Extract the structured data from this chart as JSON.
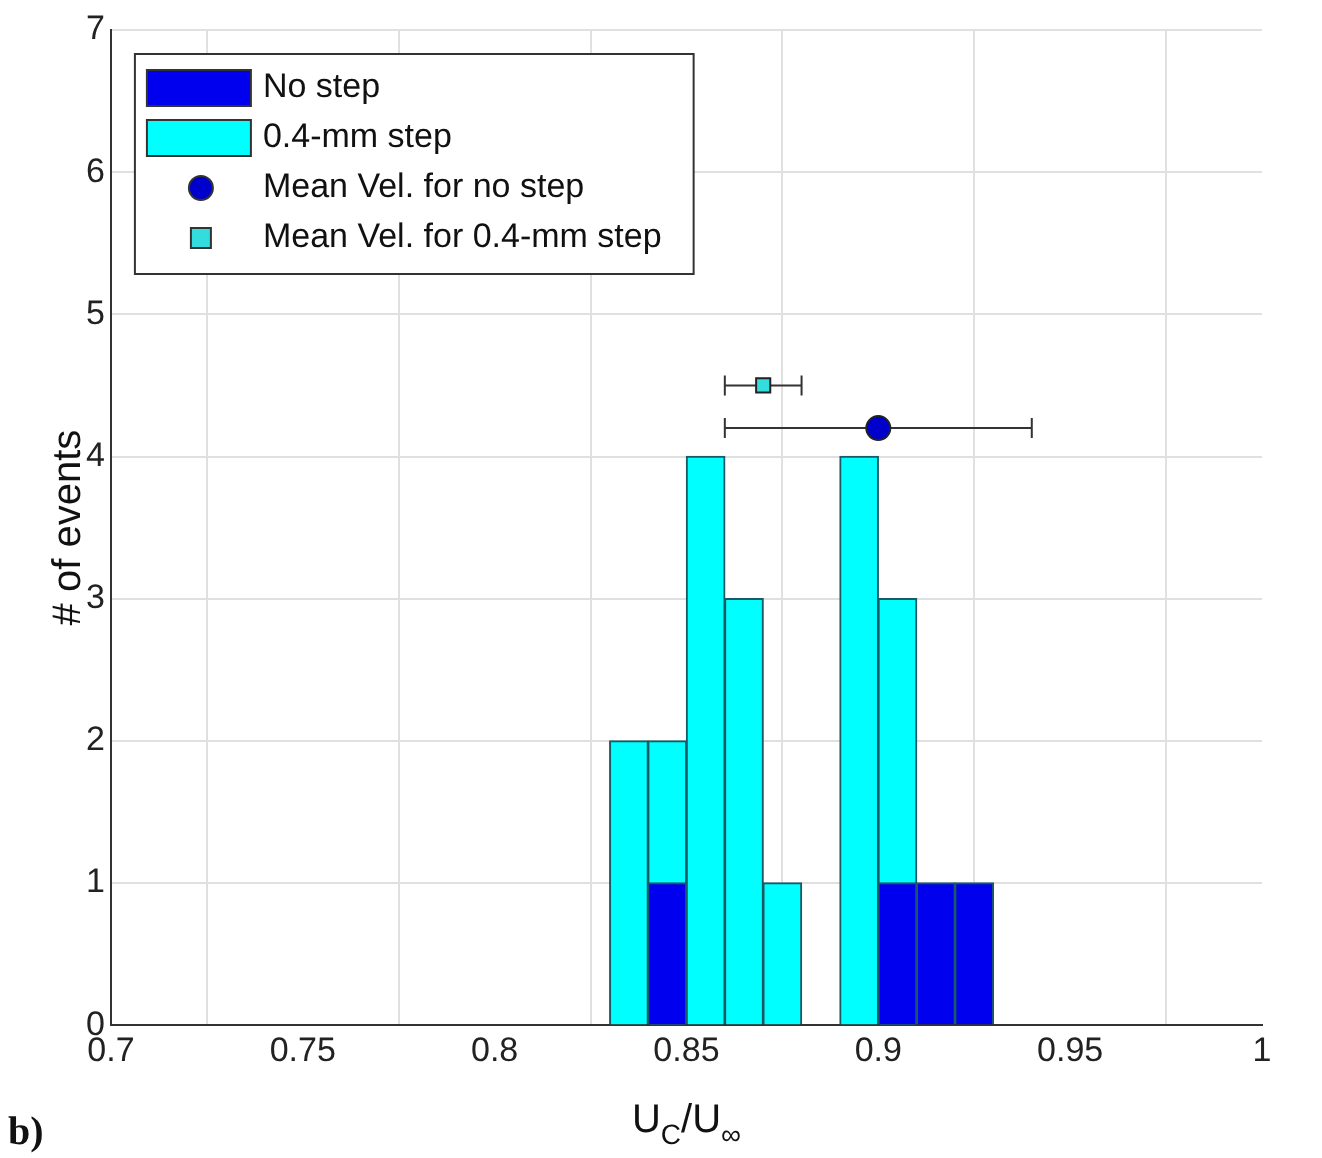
{
  "chart_data": {
    "type": "histogram",
    "xlabel": "U$_{C}$/U$_{∞}$",
    "ylabel": "# of events",
    "bins": [
      0.83,
      0.84,
      0.85,
      0.86,
      0.87,
      0.88,
      0.89,
      0.9,
      0.91,
      0.92,
      0.93
    ],
    "series": [
      {
        "name": "No step",
        "color": "#0000ee",
        "values": [
          0,
          1,
          0,
          0,
          0,
          0,
          0,
          1,
          1,
          1
        ]
      },
      {
        "name": "0.4-mm step",
        "color": "#00ffff",
        "values": [
          2,
          2,
          4,
          3,
          1,
          0,
          4,
          3,
          0,
          0
        ]
      },
      {
        "name": "Mean Vel. for no step",
        "type": "scatter",
        "marker": "circle",
        "color": "#0000cc",
        "x": [
          0.9
        ],
        "values": [
          4.2
        ],
        "xerrors": [
          0.04
        ]
      },
      {
        "name": "Mean Vel. for 0.4-mm step",
        "type": "scatter",
        "marker": "square",
        "color": "#33dddd",
        "x": [
          0.87
        ],
        "values": [
          4.5
        ],
        "xerrors": [
          0.01
        ]
      }
    ],
    "xlim": [
      0.7,
      1
    ],
    "xticks": [
      0.7,
      0.75,
      0.8,
      0.85,
      0.9,
      0.95,
      1
    ],
    "ylim": [
      0,
      7
    ],
    "yticks": [
      0,
      1,
      2,
      3,
      4,
      5,
      6,
      7
    ],
    "grid": true,
    "legend": "top left",
    "annotations": [
      "b)"
    ]
  }
}
